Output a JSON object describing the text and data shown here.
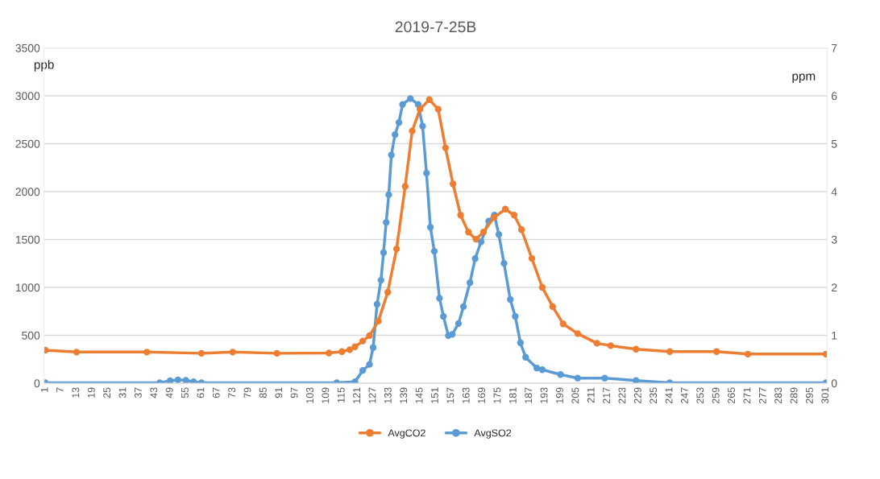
{
  "chart_data": {
    "type": "line",
    "title": "2019-7-25B",
    "ylabel": "ppb",
    "y2label": "ppm",
    "xlim": [
      0.5,
      301.5
    ],
    "xticks": [
      1,
      7,
      13,
      19,
      25,
      31,
      37,
      43,
      49,
      55,
      61,
      67,
      73,
      79,
      85,
      91,
      97,
      103,
      109,
      115,
      121,
      127,
      133,
      139,
      145,
      151,
      157,
      163,
      169,
      175,
      181,
      187,
      193,
      199,
      205,
      211,
      217,
      223,
      229,
      235,
      241,
      247,
      253,
      259,
      265,
      271,
      277,
      283,
      289,
      295,
      301
    ],
    "ylim": [
      0,
      3500
    ],
    "yticks": [
      0,
      500,
      1000,
      1500,
      2000,
      2500,
      3000,
      3500
    ],
    "y2lim": [
      0,
      7
    ],
    "y2ticks": [
      0,
      1,
      2,
      3,
      4,
      5,
      6,
      7
    ],
    "grid": "y",
    "legend": "bottom",
    "marker": "circle",
    "line_style": "solid",
    "series": [
      {
        "name": "AvgCO2",
        "color": "#ed7d31",
        "x": [
          1,
          13,
          40,
          61,
          73,
          90,
          110,
          115,
          118,
          120,
          123,
          125.6,
          129,
          132.6,
          136,
          139.3,
          142,
          145,
          148.6,
          152,
          154.8,
          157.7,
          160.6,
          163.6,
          166.5,
          169.4,
          173.4,
          177.8,
          181.2,
          184,
          188,
          192,
          196,
          200,
          205.6,
          213,
          218.3,
          228,
          241,
          259,
          271,
          301
        ],
        "values": [
          345,
          325,
          325,
          312,
          325,
          312,
          315,
          330,
          350,
          380,
          440,
          497,
          648,
          950,
          1402,
          2055,
          2633,
          2860,
          2960,
          2860,
          2457,
          2080,
          1754,
          1578,
          1503,
          1578,
          1729,
          1817,
          1754,
          1603,
          1302,
          1000,
          799,
          620,
          518,
          417,
          392,
          355,
          330,
          330,
          304,
          304
        ]
      },
      {
        "name": "AvgSO2",
        "color": "#5b9bd5",
        "x": [
          1,
          45,
          49,
          52,
          55,
          58,
          61,
          113,
          120,
          123,
          125.6,
          127,
          128.5,
          130,
          131,
          132,
          133,
          134,
          135.4,
          136.9,
          138.3,
          141.3,
          144.3,
          146,
          147.5,
          149,
          150.5,
          152.5,
          154,
          155.9,
          157.4,
          159.8,
          161.7,
          164.2,
          166.2,
          168.5,
          171.4,
          173.6,
          175.3,
          177.3,
          179.7,
          181.6,
          183.6,
          185.6,
          189.9,
          192,
          199,
          205.6,
          216,
          228,
          241,
          301
        ],
        "values": [
          5,
          5,
          25,
          35,
          30,
          15,
          5,
          5,
          15,
          133,
          196,
          372,
          824,
          1075,
          1364,
          1678,
          1967,
          2382,
          2595,
          2721,
          2910,
          2972,
          2910,
          2683,
          2193,
          1628,
          1377,
          887,
          698,
          497,
          510,
          623,
          799,
          1050,
          1301,
          1477,
          1691,
          1754,
          1553,
          1251,
          874,
          698,
          422,
          271,
          158,
          141,
          90,
          53,
          53,
          28,
          5,
          5
        ]
      }
    ]
  }
}
